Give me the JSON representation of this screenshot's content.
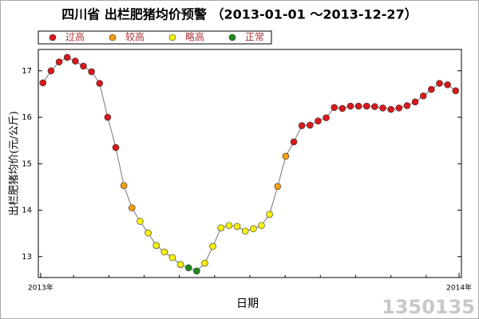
{
  "chart_data": {
    "type": "line",
    "title": "四川省 出栏肥猪均价预警 （2013-01-01 ～2013-12-27）",
    "x_label": "日期",
    "y_label": "出栏肥猪均价(元/公斤)",
    "watermark": "1350135",
    "legend": [
      {
        "name": "过高",
        "color": "#d7191c"
      },
      {
        "name": "较高",
        "color": "#f39c12"
      },
      {
        "name": "略高",
        "color": "#f4f00f"
      },
      {
        "name": "正常",
        "color": "#1e8a1e"
      }
    ],
    "x": [
      2,
      9,
      16,
      23,
      30,
      37,
      44,
      51,
      58,
      65,
      72,
      79,
      86,
      93,
      100,
      107,
      114,
      121,
      128,
      135,
      142,
      149,
      156,
      163,
      170,
      177,
      184,
      191,
      198,
      205,
      212,
      219,
      226,
      233,
      240,
      247,
      254,
      261,
      268,
      275,
      282,
      289,
      296,
      303,
      310,
      317,
      324,
      331,
      338,
      345,
      352,
      359
    ],
    "series": [
      {
        "name": "出栏肥猪均价",
        "color": "#777777",
        "values": [
          16.74,
          17.0,
          17.19,
          17.29,
          17.21,
          17.1,
          16.98,
          16.73,
          16.0,
          15.35,
          14.53,
          14.05,
          13.76,
          13.51,
          13.24,
          13.1,
          12.98,
          12.83,
          12.76,
          12.69,
          12.86,
          13.22,
          13.62,
          13.67,
          13.65,
          13.55,
          13.6,
          13.67,
          13.91,
          14.51,
          15.16,
          15.47,
          15.82,
          15.83,
          15.92,
          15.99,
          16.21,
          16.19,
          16.24,
          16.24,
          16.24,
          16.23,
          16.2,
          16.17,
          16.2,
          16.25,
          16.33,
          16.46,
          16.6,
          16.73,
          16.7,
          16.57
        ],
        "levels": [
          0,
          0,
          0,
          0,
          0,
          0,
          0,
          0,
          0,
          0,
          1,
          1,
          2,
          2,
          2,
          2,
          2,
          2,
          3,
          3,
          2,
          2,
          2,
          2,
          2,
          2,
          2,
          2,
          2,
          1,
          1,
          0,
          0,
          0,
          0,
          0,
          0,
          0,
          0,
          0,
          0,
          0,
          0,
          0,
          0,
          0,
          0,
          0,
          0,
          0,
          0,
          0
        ]
      }
    ],
    "xlim": [
      -2,
      364
    ],
    "xticks": [
      {
        "value": 0,
        "label": "2013年"
      },
      {
        "value": 362,
        "label": "2014年"
      }
    ],
    "ylim": [
      12.55,
      17.46
    ],
    "yticks": [
      13,
      14,
      15,
      16,
      17
    ]
  }
}
